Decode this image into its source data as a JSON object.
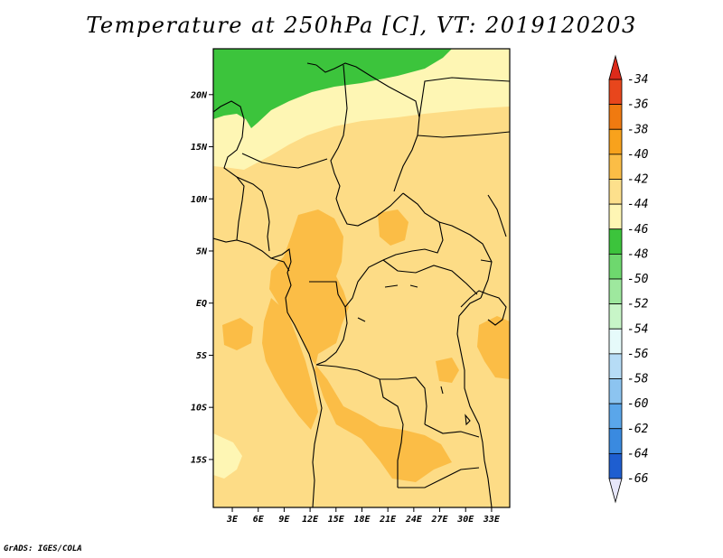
{
  "title": "Temperature at 250hPa [C], VT: 2019120203",
  "credit": "GrADS: IGES/COLA",
  "lat_ticks": [
    {
      "value": 20,
      "label": "20N"
    },
    {
      "value": 15,
      "label": "15N"
    },
    {
      "value": 10,
      "label": "10N"
    },
    {
      "value": 5,
      "label": "5N"
    },
    {
      "value": 0,
      "label": "EQ"
    },
    {
      "value": -5,
      "label": "5S"
    },
    {
      "value": -10,
      "label": "10S"
    },
    {
      "value": -15,
      "label": "15S"
    }
  ],
  "lon_ticks": [
    {
      "value": 3,
      "label": "3E"
    },
    {
      "value": 6,
      "label": "6E"
    },
    {
      "value": 9,
      "label": "9E"
    },
    {
      "value": 12,
      "label": "12E"
    },
    {
      "value": 15,
      "label": "15E"
    },
    {
      "value": 18,
      "label": "18E"
    },
    {
      "value": 21,
      "label": "21E"
    },
    {
      "value": 24,
      "label": "24E"
    },
    {
      "value": 27,
      "label": "27E"
    },
    {
      "value": 30,
      "label": "30E"
    },
    {
      "value": 33,
      "label": "33E"
    }
  ],
  "colorbar": [
    {
      "label": "-34",
      "color": "#e8461c"
    },
    {
      "label": "-36",
      "color": "#f07a10"
    },
    {
      "label": "-38",
      "color": "#f8a21c"
    },
    {
      "label": "-40",
      "color": "#fbbd46"
    },
    {
      "label": "-42",
      "color": "#fde08c"
    },
    {
      "label": "-44",
      "color": "#fef6b4"
    },
    {
      "label": "-46",
      "color": "#3cc43c"
    },
    {
      "label": "-48",
      "color": "#6ed86e"
    },
    {
      "label": "-50",
      "color": "#9ee89e"
    },
    {
      "label": "-52",
      "color": "#c8f6c8"
    },
    {
      "label": "-54",
      "color": "#e6fafa"
    },
    {
      "label": "-56",
      "color": "#b6dcf6"
    },
    {
      "label": "-58",
      "color": "#8cc4f0"
    },
    {
      "label": "-60",
      "color": "#5aa6ea"
    },
    {
      "label": "-62",
      "color": "#3a8ae0"
    },
    {
      "label": "-64",
      "color": "#1e5ed0"
    },
    {
      "label": "-66",
      "color": "#1436a6"
    }
  ],
  "colorbar_top_color": "#dc2a1a",
  "colorbar_bottom_color": "#0a1478",
  "colorbar_end_color": "#e6e6fa",
  "field_colors": {
    "background": "#fddc86",
    "warmer": "#fbbd46",
    "cooler": "#fef6b4",
    "coldest": "#3cc43c"
  }
}
